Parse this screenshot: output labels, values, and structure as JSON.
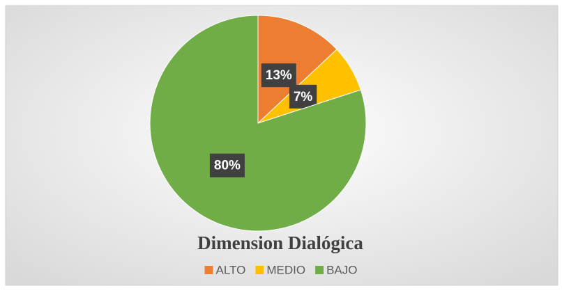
{
  "chart_data": {
    "type": "pie",
    "title": "Dimension Dialógica",
    "categories": [
      "ALTO",
      "MEDIO",
      "BAJO"
    ],
    "values": [
      13,
      7,
      80
    ],
    "value_labels": [
      "13%",
      "7%",
      "80%"
    ],
    "colors": [
      "#ed7d31",
      "#ffc000",
      "#70ad47"
    ],
    "legend": "bottom"
  }
}
